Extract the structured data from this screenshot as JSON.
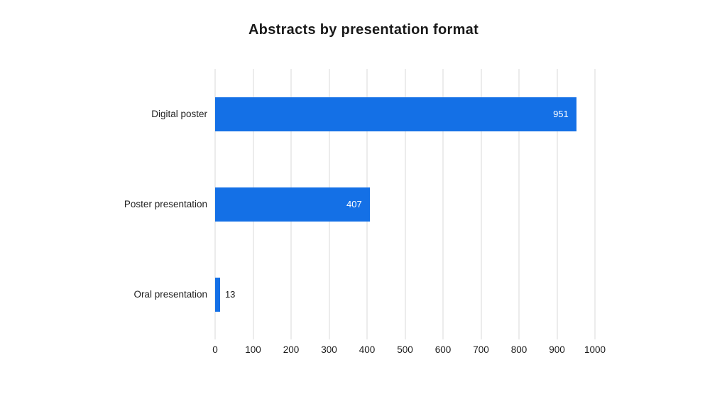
{
  "title": "Abstracts by presentation format",
  "chart_data": {
    "type": "bar",
    "orientation": "horizontal",
    "title": "Abstracts by presentation format",
    "categories": [
      "Digital poster",
      "Poster presentation",
      "Oral presentation"
    ],
    "values": [
      951,
      407,
      13
    ],
    "xlabel": "",
    "ylabel": "",
    "xlim": [
      0,
      1000
    ],
    "xticks": [
      0,
      100,
      200,
      300,
      400,
      500,
      600,
      700,
      800,
      900,
      1000
    ],
    "grid": true,
    "legend_position": "none",
    "colors": {
      "bar": "#1470e6",
      "gridline": "#ececec",
      "value_label_inside": "#ffffff",
      "value_label_outside": "#1a1a1a",
      "text": "#1f1f1f",
      "background": "#ffffff"
    }
  }
}
